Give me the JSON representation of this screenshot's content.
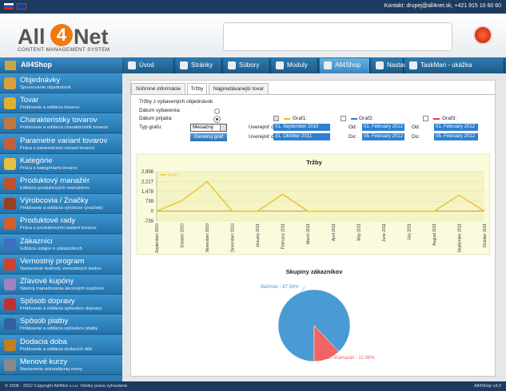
{
  "top_bar": {
    "contact": "Kontakt: drupej@all4net.sk, +421 915 10 60 60"
  },
  "header": {
    "logo": [
      "All",
      "4",
      "Net"
    ],
    "logo_subtitle": "CONTENT MANAGEMENT SYSTEM"
  },
  "nav": {
    "section": "All4Shop",
    "tabs": [
      "Úvod",
      "Stránky",
      "Súbory",
      "Moduly",
      "All4Shop",
      "Nastavenia",
      "TaskMan - ukážka"
    ],
    "active_tab": 4
  },
  "sidebar": [
    {
      "title": "Objednávky",
      "subtitle": "Spravovanie objednávok"
    },
    {
      "title": "Tovar",
      "subtitle": "Pridávanie a editácia tovarov"
    },
    {
      "title": "Charakteristiky tovarov",
      "subtitle": "Pridávanie a editácia charakteristík tovarov"
    },
    {
      "title": "Parametre variant tovarov",
      "subtitle": "Práca s parametrami variant tovarov"
    },
    {
      "title": "Kategórie",
      "subtitle": "Práca s kategóriami tovarov"
    },
    {
      "title": "Produktový manažér",
      "subtitle": "Editácia produktových manažérov"
    },
    {
      "title": "Výrobcovia / Značky",
      "subtitle": "Pridávanie a editácia výrobcov (značiek)"
    },
    {
      "title": "Produktové rady",
      "subtitle": "Práca s produktovými radami tovarov"
    },
    {
      "title": "Zákazníci",
      "subtitle": "Editácia údajov o zákazníkoch"
    },
    {
      "title": "Vernostný program",
      "subtitle": "Nastavenie hodnoty vernostných bodov"
    },
    {
      "title": "Zľavové kupóny",
      "subtitle": "Nástroj manažovania akciových kupónov"
    },
    {
      "title": "Spôsob dopravy",
      "subtitle": "Pridávanie a editácia spôsobov dopravy"
    },
    {
      "title": "Spôsob platby",
      "subtitle": "Pridávanie a editácia spôsobov platby"
    },
    {
      "title": "Dodacia doba",
      "subtitle": "Pridávanie a editácia dodacích dôb"
    },
    {
      "title": "Menové kurzy",
      "subtitle": "Nastavenie sekundárnej meny"
    }
  ],
  "tabs": {
    "items": [
      "Súhrnné informácie",
      "Tržby",
      "Najpredávanejší tovar"
    ],
    "active": 1
  },
  "form": {
    "heading": "Tržby z vybavených objednávok",
    "date_done": "Dátum vybavenia:",
    "date_received": "Dátum prijatia:",
    "chart_type_label": "Typ grafu:",
    "chart_type": "Mesačný",
    "button": "Generuj graf",
    "graphs": [
      {
        "label": "Graf1:",
        "color": "#e8c020",
        "checked": true,
        "from_label": "Uverejniť od:",
        "from": "01. September 2010",
        "to_label": "Uverejniť do:",
        "to": "31. Október 2011"
      },
      {
        "label": "Graf2:",
        "color": "#2a7fd0",
        "checked": false,
        "from_label": "Od:",
        "from": "01. February 2012",
        "to_label": "Do:",
        "to": "05. February 2012"
      },
      {
        "label": "Graf3:",
        "color": "#e04040",
        "checked": false,
        "from_label": "Od:",
        "from": "01. February 2012",
        "to_label": "Do:",
        "to": "05. February 2012"
      }
    ]
  },
  "chart_data": [
    {
      "type": "line",
      "title": "Tržby",
      "categories": [
        "September 2010",
        "October 2010",
        "November 2010",
        "December 2010",
        "January 2011",
        "February 2011",
        "March 2011",
        "April 2011",
        "May 2011",
        "June 2011",
        "July 2011",
        "August 2011",
        "September 2011",
        "October 2011"
      ],
      "series": [
        {
          "name": "Graf 1",
          "color": "#e8c828",
          "values": [
            0,
            780,
            2200,
            0,
            0,
            1260,
            0,
            0,
            0,
            0,
            0,
            0,
            1200,
            0
          ]
        }
      ],
      "ylim": [
        -739,
        2956
      ],
      "yticks": [
        -739,
        0,
        739,
        {
          "value": 1478,
          "label": "1,478"
        },
        {
          "value": 2217,
          "label": "2,217"
        },
        {
          "value": 2956,
          "label": "2,956"
        }
      ],
      "grid": true
    },
    {
      "type": "pie",
      "title": "Skupiny zákazníkov",
      "values": [
        87.94,
        12.06
      ],
      "value_labels": [
        "Bačman - 87.94%",
        "Kamaráti - 12.06%"
      ],
      "colors": [
        "#4a9ad4",
        "#f06464"
      ]
    }
  ],
  "footer": {
    "copyright": "© 2006 - 2012 Copyright All4Net s.r.o. Všetky práva vyhradené.",
    "version": "All4Shop v3.0"
  }
}
